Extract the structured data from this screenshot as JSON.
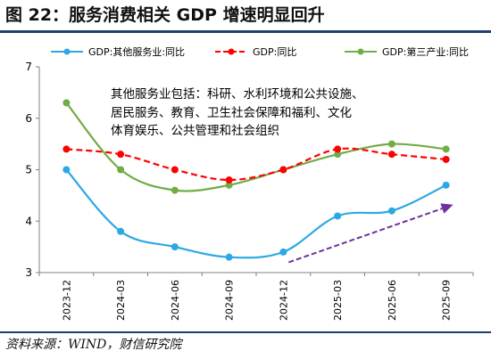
{
  "header": {
    "title": "图 22：服务消费相关 GDP 增速明显回升"
  },
  "footer": {
    "source": "资料来源：WIND，财信研究院"
  },
  "chart_data": {
    "type": "line",
    "categories": [
      "2023-12",
      "2024-03",
      "2024-06",
      "2024-09",
      "2024-12",
      "2025-03",
      "2025-06",
      "2025-09"
    ],
    "ylim": [
      3,
      7
    ],
    "yticks": [
      "3",
      "4",
      "5",
      "6",
      "7"
    ],
    "grid": false,
    "legend_position": "top",
    "series": [
      {
        "name": "GDP:其他服务业:同比",
        "color": "#2ea8e4",
        "style": "solid",
        "marker": "circle",
        "values": [
          5.0,
          3.8,
          3.5,
          3.3,
          3.4,
          4.1,
          4.2,
          4.7
        ]
      },
      {
        "name": "GDP:同比",
        "color": "#ff0000",
        "style": "dashed",
        "marker": "circle",
        "values": [
          5.4,
          5.3,
          5.0,
          4.8,
          5.0,
          5.4,
          5.3,
          5.2
        ]
      },
      {
        "name": "GDP:第三产业:同比",
        "color": "#71ad47",
        "style": "solid",
        "marker": "circle",
        "values": [
          6.3,
          5.0,
          4.6,
          4.7,
          5.0,
          5.3,
          5.5,
          5.4
        ]
      }
    ],
    "annotations": [
      {
        "text": "其他服务业包括：科研、水利环境和公共设施、"
      },
      {
        "text": "居民服务、教育、卫生社会保障和福利、文化"
      },
      {
        "text": "体育娱乐、公共管理和社会组织"
      }
    ],
    "trend_arrow": {
      "color": "#7030a0",
      "from": {
        "x": "2024-12",
        "y": 3.2
      },
      "to": {
        "x": "2025-09",
        "y": 4.32
      }
    }
  }
}
